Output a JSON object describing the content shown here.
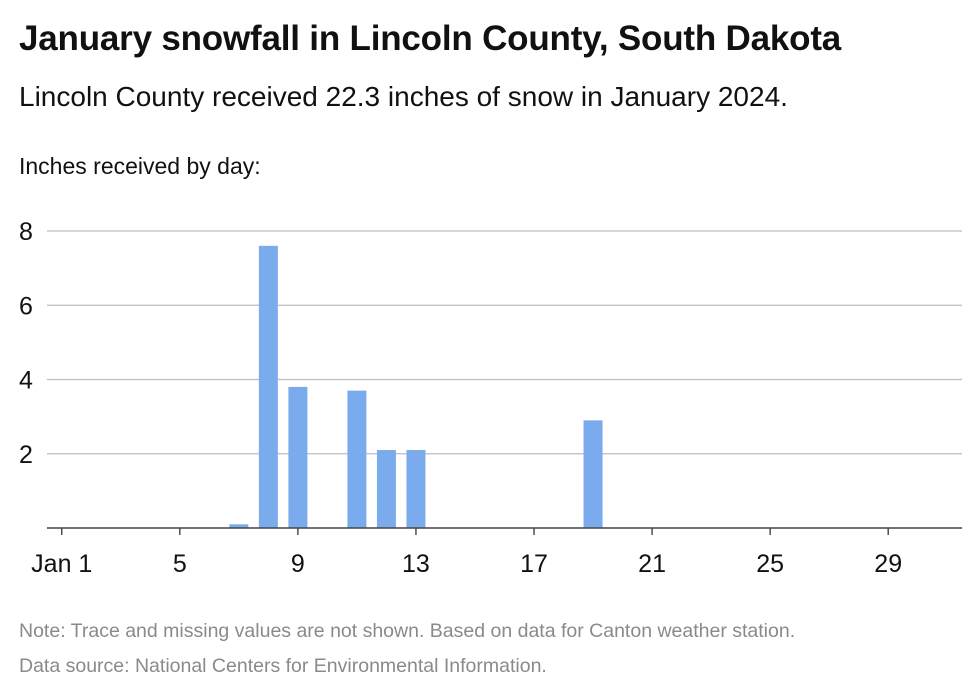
{
  "chart_data": {
    "type": "bar",
    "title": "January snowfall in Lincoln County, South Dakota",
    "subtitle": "Lincoln County received 22.3 inches of snow in January 2024.",
    "ylabel": "Inches received by day:",
    "xlabel": "",
    "x_tick_labels": [
      "Jan 1",
      "5",
      "9",
      "13",
      "17",
      "21",
      "25",
      "29"
    ],
    "x_ticks": [
      1,
      5,
      9,
      13,
      17,
      21,
      25,
      29
    ],
    "xlim": [
      0.5,
      31.5
    ],
    "y_ticks": [
      2,
      4,
      6,
      8
    ],
    "ylim": [
      0,
      8
    ],
    "grid": true,
    "bar_color": "#7aabed",
    "categories": [
      1,
      2,
      3,
      4,
      5,
      6,
      7,
      8,
      9,
      10,
      11,
      12,
      13,
      14,
      15,
      16,
      17,
      18,
      19,
      20,
      21,
      22,
      23,
      24,
      25,
      26,
      27,
      28,
      29,
      30,
      31
    ],
    "values": [
      0,
      0,
      0,
      0,
      0,
      0,
      0.1,
      7.6,
      3.8,
      0,
      3.7,
      2.1,
      2.1,
      0,
      0,
      0,
      0,
      0,
      2.9,
      0,
      0,
      0,
      0,
      0,
      0,
      0,
      0,
      0,
      0,
      0,
      0
    ],
    "note": "Note: Trace and missing values are not shown. Based on data for Canton weather station.",
    "source": "Data source: National Centers for Environmental Information."
  }
}
